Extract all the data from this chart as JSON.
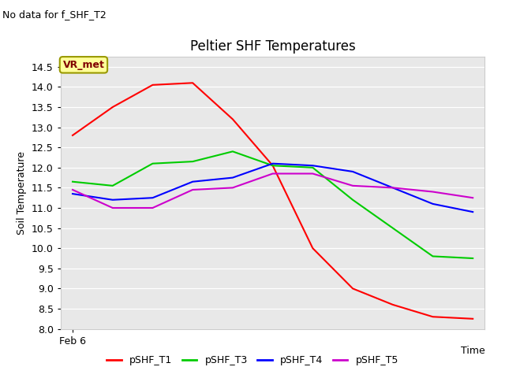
{
  "title": "Peltier SHF Temperatures",
  "xlabel": "Time",
  "ylabel": "Soil Temperature",
  "no_data_text": "No data for f_SHF_T2",
  "vr_met_label": "VR_met",
  "ylim": [
    8.0,
    14.75
  ],
  "yticks": [
    8.0,
    8.5,
    9.0,
    9.5,
    10.0,
    10.5,
    11.0,
    11.5,
    12.0,
    12.5,
    13.0,
    13.5,
    14.0,
    14.5
  ],
  "xstart_label": "Feb 6",
  "bg_color": "#e8e8e8",
  "series": {
    "pSHF_T1": {
      "color": "#ff0000",
      "x": [
        0,
        1,
        2,
        3,
        4,
        5,
        6,
        7,
        8,
        9,
        10
      ],
      "y": [
        12.8,
        13.5,
        14.05,
        14.1,
        13.2,
        12.05,
        10.0,
        9.0,
        8.6,
        8.3,
        8.25
      ]
    },
    "pSHF_T3": {
      "color": "#00cc00",
      "x": [
        0,
        1,
        2,
        3,
        4,
        5,
        6,
        7,
        8,
        9,
        10
      ],
      "y": [
        11.65,
        11.55,
        12.1,
        12.15,
        12.4,
        12.05,
        12.0,
        11.2,
        10.5,
        9.8,
        9.75
      ]
    },
    "pSHF_T4": {
      "color": "#0000ff",
      "x": [
        0,
        1,
        2,
        3,
        4,
        5,
        6,
        7,
        8,
        9,
        10
      ],
      "y": [
        11.35,
        11.2,
        11.25,
        11.65,
        11.75,
        12.1,
        12.05,
        11.9,
        11.5,
        11.1,
        10.9
      ]
    },
    "pSHF_T5": {
      "color": "#cc00cc",
      "x": [
        0,
        1,
        2,
        3,
        4,
        5,
        6,
        7,
        8,
        9,
        10
      ],
      "y": [
        11.45,
        11.0,
        11.0,
        11.45,
        11.5,
        11.85,
        11.85,
        11.55,
        11.5,
        11.4,
        11.25
      ]
    }
  },
  "legend_order": [
    "pSHF_T1",
    "pSHF_T3",
    "pSHF_T4",
    "pSHF_T5"
  ],
  "vr_met_box_color": "#ffff99",
  "vr_met_text_color": "#800000",
  "vr_met_edge_color": "#999900",
  "title_fontsize": 12,
  "axis_label_fontsize": 9,
  "tick_fontsize": 9,
  "legend_fontsize": 9,
  "no_data_fontsize": 9
}
